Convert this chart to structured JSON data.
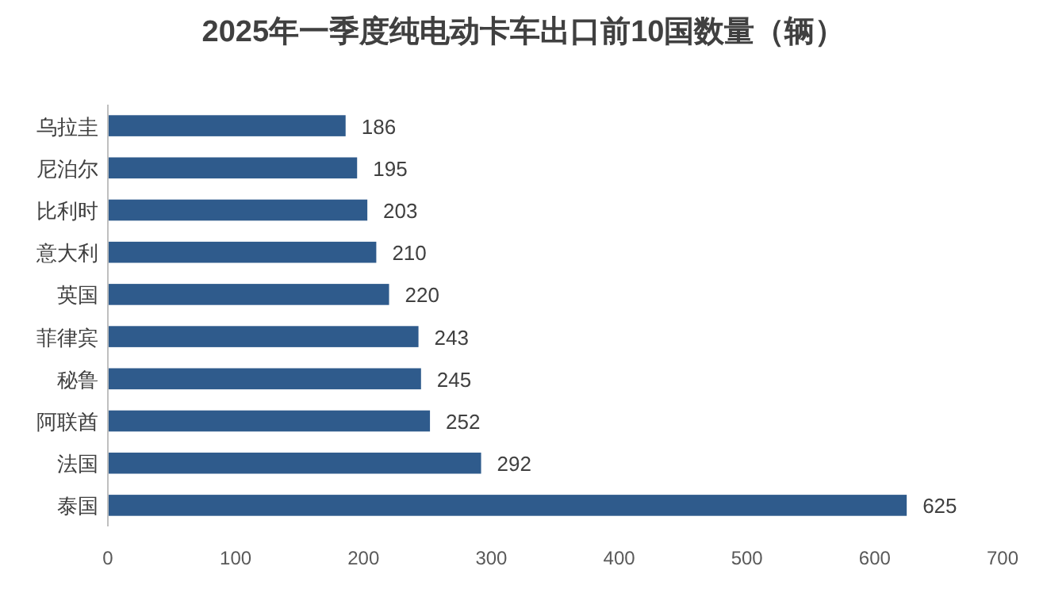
{
  "chart_data": {
    "type": "bar",
    "orientation": "horizontal",
    "title": "2025年一季度纯电动卡车出口前10国数量（辆）",
    "categories": [
      "乌拉圭",
      "尼泊尔",
      "比利时",
      "意大利",
      "英国",
      "菲律宾",
      "秘鲁",
      "阿联酋",
      "法国",
      "泰国"
    ],
    "values": [
      186,
      195,
      203,
      210,
      220,
      243,
      245,
      252,
      292,
      625
    ],
    "color": "#2f5b8c",
    "xlim": [
      0,
      700
    ],
    "xticks": [
      0,
      100,
      200,
      300,
      400,
      500,
      600,
      700
    ],
    "data_labels": true
  }
}
